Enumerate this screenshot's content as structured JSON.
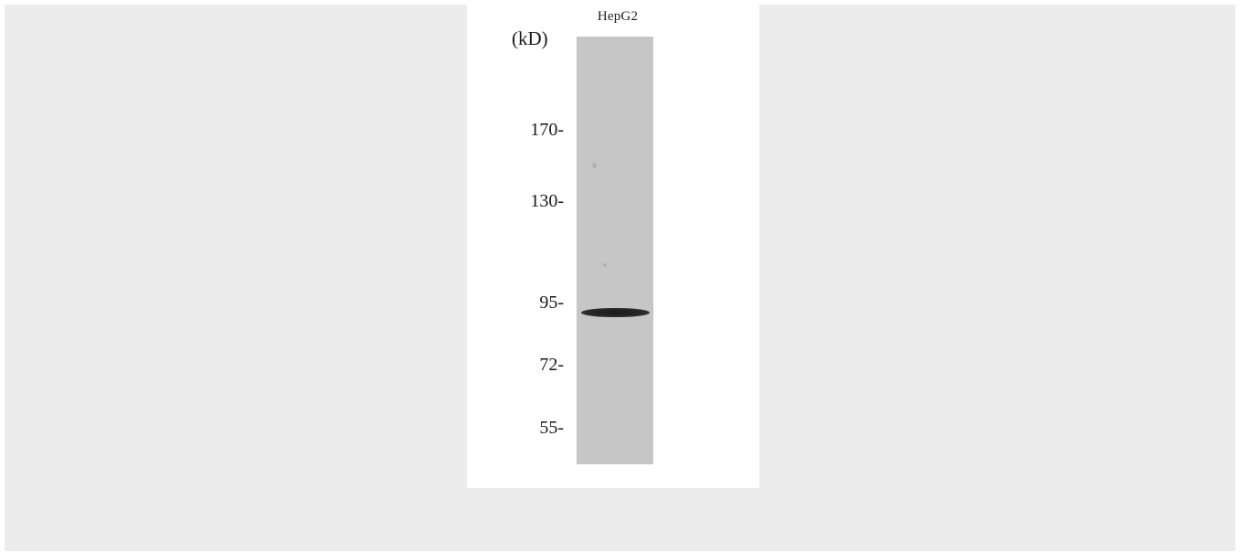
{
  "blot": {
    "lane_label": "HepG2",
    "unit_label": "(kD)",
    "markers": [
      {
        "label": "170-"
      },
      {
        "label": "130-"
      },
      {
        "label": "95-"
      },
      {
        "label": "72-"
      },
      {
        "label": "55-"
      }
    ],
    "colors": {
      "background": "#ececec",
      "panel": "#ffffff",
      "lane": "#c6c6c6",
      "band": "#222222"
    }
  }
}
